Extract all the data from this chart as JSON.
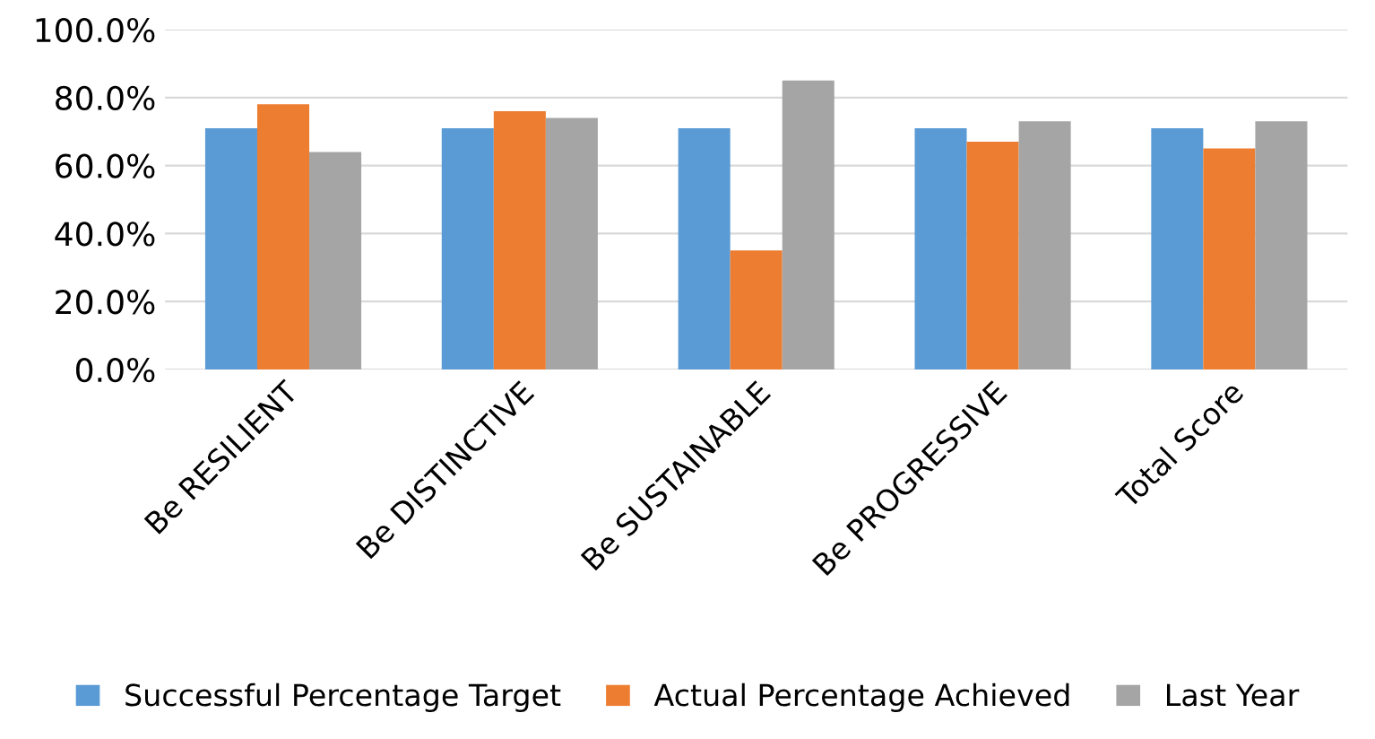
{
  "chart_data": {
    "type": "bar",
    "categories": [
      "Be RESILIENT",
      "Be DISTINCTIVE",
      "Be SUSTAINABLE",
      "Be PROGRESSIVE",
      "Total Score"
    ],
    "series": [
      {
        "name": "Successful Percentage Target",
        "color": "#5b9bd5",
        "values": [
          71,
          71,
          71,
          71,
          71
        ]
      },
      {
        "name": "Actual Percentage Achieved",
        "color": "#ed7d31",
        "values": [
          78,
          76,
          35,
          67,
          65
        ]
      },
      {
        "name": "Last Year",
        "color": "#a5a5a5",
        "values": [
          64,
          74,
          85,
          73,
          73
        ]
      }
    ],
    "ylim": [
      0,
      100
    ],
    "yticks": [
      {
        "value": 0,
        "label": "0.0%"
      },
      {
        "value": 20,
        "label": "20.0%"
      },
      {
        "value": 40,
        "label": "40.0%"
      },
      {
        "value": 60,
        "label": "60.0%"
      },
      {
        "value": 80,
        "label": "80.0%"
      },
      {
        "value": 100,
        "label": "100.0%"
      }
    ],
    "grid": "y",
    "legend": "bottom"
  }
}
